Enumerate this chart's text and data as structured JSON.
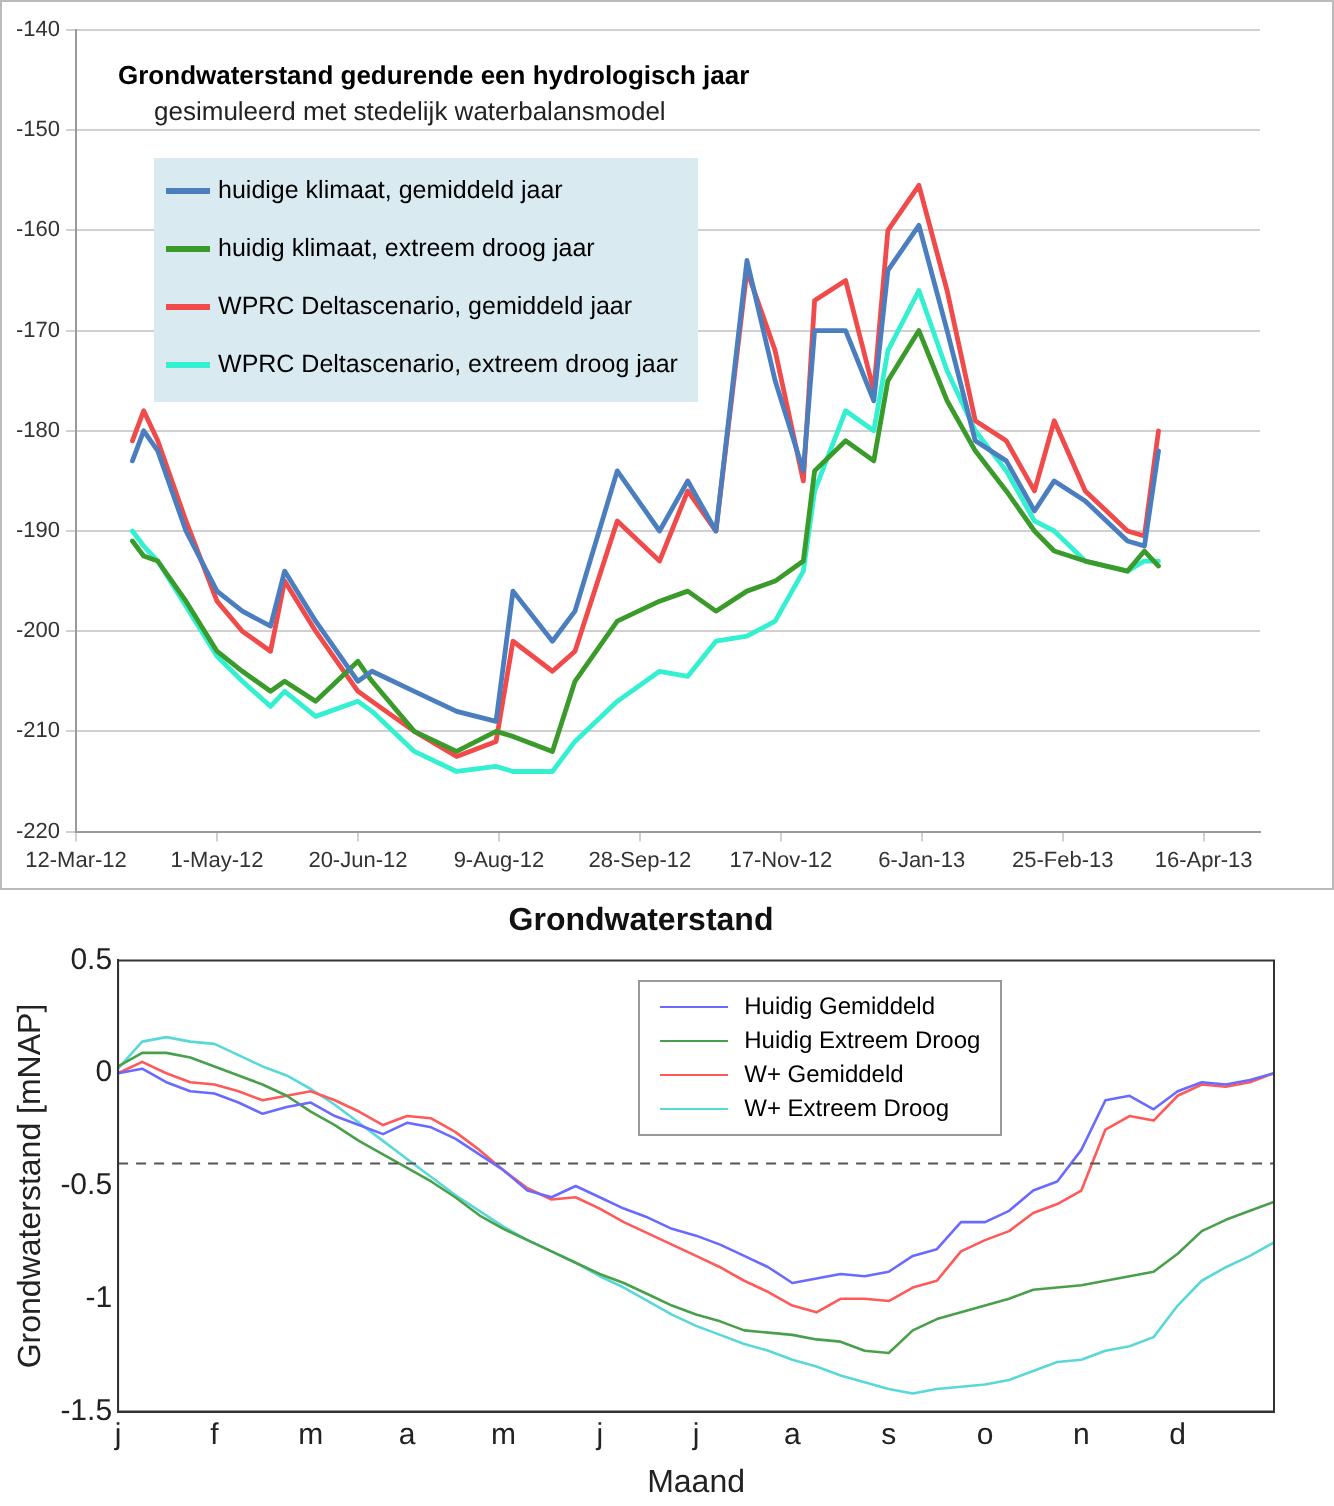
{
  "chart_data": [
    {
      "type": "line",
      "title": "Grondwaterstand gedurende een hydrologisch jaar",
      "subtitle": "gesimuleerd met stedelijk waterbalansmodel",
      "x": [
        "2012-04-01",
        "2012-04-05",
        "2012-04-10",
        "2012-04-20",
        "2012-05-01",
        "2012-05-10",
        "2012-05-20",
        "2012-05-25",
        "2012-06-05",
        "2012-06-20",
        "2012-06-25",
        "2012-07-10",
        "2012-07-25",
        "2012-08-08",
        "2012-08-14",
        "2012-08-28",
        "2012-09-05",
        "2012-09-20",
        "2012-10-05",
        "2012-10-15",
        "2012-10-25",
        "2012-11-05",
        "2012-11-15",
        "2012-11-25",
        "2012-11-29",
        "2012-12-10",
        "2012-12-20",
        "2012-12-25",
        "2013-01-05",
        "2013-01-15",
        "2013-01-25",
        "2013-02-05",
        "2013-02-15",
        "2013-02-22",
        "2013-03-05",
        "2013-03-20",
        "2013-03-26",
        "2013-03-31"
      ],
      "series": [
        {
          "name": "huidige klimaat, gemiddeld jaar",
          "color": "#4a7ebf",
          "values": [
            -183,
            -180,
            -182,
            -190,
            -196,
            -198,
            -199.5,
            -194,
            -199,
            -205,
            -204,
            -206,
            -208,
            -209,
            -196,
            -201,
            -198,
            -184,
            -190,
            -185,
            -190,
            -163,
            -175,
            -184,
            -170,
            -170,
            -177,
            -164,
            -159.5,
            -170,
            -181,
            -183,
            -188,
            -185,
            -187,
            -191,
            -191.5,
            -182
          ]
        },
        {
          "name": "huidig klimaat, extreem droog jaar",
          "color": "#3a9a2a",
          "values": [
            -191,
            -192.5,
            -193,
            -197,
            -202,
            -204,
            -206,
            -205,
            -207,
            -203,
            -205,
            -210,
            -212,
            -210,
            -210.5,
            -212,
            -205,
            -199,
            -197,
            -196,
            -198,
            -196,
            -195,
            -193,
            -184,
            -181,
            -183,
            -175,
            -170,
            -177,
            -182,
            -186,
            -190,
            -192,
            -193,
            -194,
            -192,
            -193.5
          ]
        },
        {
          "name": "WPRC Deltascenario, gemiddeld jaar",
          "color": "#f04a4a",
          "values": [
            -181,
            -178,
            -181,
            -189,
            -197,
            -200,
            -202,
            -195,
            -200,
            -206,
            -207,
            -210,
            -212.5,
            -211,
            -201,
            -204,
            -202,
            -189,
            -193,
            -186,
            -190,
            -164,
            -172,
            -185,
            -167,
            -165,
            -176,
            -160,
            -155.5,
            -166,
            -179,
            -181,
            -186,
            -179,
            -186,
            -190,
            -190.5,
            -180
          ]
        },
        {
          "name": "WPRC Deltascenario, extreem droog jaar",
          "color": "#33f0d0",
          "values": [
            -190,
            -191.5,
            -193,
            -197.5,
            -202.5,
            -205,
            -207.5,
            -206,
            -208.5,
            -207,
            -208,
            -212,
            -214,
            -213.5,
            -214,
            -214,
            -211,
            -207,
            -204,
            -204.5,
            -201,
            -200.5,
            -199,
            -194,
            -186,
            -178,
            -180,
            -172,
            -166,
            -174,
            -180,
            -184,
            -189,
            -190,
            -193,
            -194,
            -193,
            -193
          ]
        }
      ],
      "xlim": [
        "2012-03-12",
        "2013-05-06"
      ],
      "xticks": [
        {
          "value": "2012-03-12",
          "label": "12-Mar-12"
        },
        {
          "value": "2012-05-01",
          "label": "1-May-12"
        },
        {
          "value": "2012-06-20",
          "label": "20-Jun-12"
        },
        {
          "value": "2012-08-09",
          "label": "9-Aug-12"
        },
        {
          "value": "2012-09-28",
          "label": "28-Sep-12"
        },
        {
          "value": "2012-11-17",
          "label": "17-Nov-12"
        },
        {
          "value": "2013-01-06",
          "label": "6-Jan-13"
        },
        {
          "value": "2013-02-25",
          "label": "25-Feb-13"
        },
        {
          "value": "2013-04-16",
          "label": "16-Apr-13"
        }
      ],
      "ylim": [
        -220,
        -140
      ],
      "yticks": [
        -220,
        -210,
        -200,
        -190,
        -180,
        -170,
        -160,
        -150,
        -140
      ],
      "grid": "y",
      "legend": "top left",
      "marker": "none",
      "line_style": "solid"
    },
    {
      "type": "line",
      "title": "Grondwaterstand",
      "xlabel": "Maand",
      "ylabel": "Grondwaterstand [mNAP]",
      "categories": [
        "j",
        null,
        null,
        null,
        "f",
        null,
        null,
        null,
        "m",
        null,
        null,
        null,
        "a",
        null,
        null,
        null,
        "m",
        null,
        null,
        null,
        "j",
        null,
        null,
        null,
        "j",
        null,
        null,
        null,
        "a",
        null,
        null,
        null,
        "s",
        null,
        null,
        null,
        "o",
        null,
        null,
        null,
        "n",
        null,
        null,
        null,
        "d",
        null,
        null,
        null,
        null
      ],
      "series": [
        {
          "name": "Huidig Gemiddeld",
          "color": "#6a6aff",
          "values": [
            0,
            0.02,
            -0.04,
            -0.08,
            -0.09,
            -0.13,
            -0.18,
            -0.15,
            -0.13,
            -0.19,
            -0.23,
            -0.27,
            -0.22,
            -0.24,
            -0.29,
            -0.36,
            -0.43,
            -0.52,
            -0.55,
            -0.5,
            -0.55,
            -0.6,
            -0.64,
            -0.69,
            -0.72,
            -0.76,
            -0.81,
            -0.86,
            -0.93,
            -0.91,
            -0.89,
            -0.9,
            -0.88,
            -0.81,
            -0.78,
            -0.66,
            -0.66,
            -0.61,
            -0.52,
            -0.48,
            -0.34,
            -0.12,
            -0.1,
            -0.16,
            -0.08,
            -0.04,
            -0.05,
            -0.03,
            0
          ]
        },
        {
          "name": "Huidig Extreem Droog",
          "color": "#4aa04a",
          "values": [
            0.03,
            0.09,
            0.09,
            0.07,
            0.03,
            -0.01,
            -0.05,
            -0.1,
            -0.17,
            -0.23,
            -0.3,
            -0.36,
            -0.42,
            -0.48,
            -0.55,
            -0.63,
            -0.69,
            -0.74,
            -0.79,
            -0.84,
            -0.89,
            -0.93,
            -0.98,
            -1.03,
            -1.07,
            -1.1,
            -1.14,
            -1.15,
            -1.16,
            -1.18,
            -1.19,
            -1.23,
            -1.24,
            -1.14,
            -1.09,
            -1.06,
            -1.03,
            -1,
            -0.96,
            -0.95,
            -0.94,
            -0.92,
            -0.9,
            -0.88,
            -0.8,
            -0.7,
            -0.65,
            -0.61,
            -0.57
          ]
        },
        {
          "name": "W+ Gemiddeld",
          "color": "#ff5a5a",
          "values": [
            0,
            0.05,
            0,
            -0.04,
            -0.05,
            -0.08,
            -0.12,
            -0.1,
            -0.08,
            -0.12,
            -0.17,
            -0.23,
            -0.19,
            -0.2,
            -0.26,
            -0.34,
            -0.43,
            -0.51,
            -0.56,
            -0.55,
            -0.6,
            -0.66,
            -0.71,
            -0.76,
            -0.81,
            -0.86,
            -0.92,
            -0.97,
            -1.03,
            -1.06,
            -1,
            -1,
            -1.01,
            -0.95,
            -0.92,
            -0.79,
            -0.74,
            -0.7,
            -0.62,
            -0.58,
            -0.52,
            -0.25,
            -0.19,
            -0.21,
            -0.1,
            -0.05,
            -0.06,
            -0.04,
            0
          ]
        },
        {
          "name": "W+ Extreem Droog",
          "color": "#5ad8d8",
          "values": [
            0.02,
            0.14,
            0.16,
            0.14,
            0.13,
            0.08,
            0.03,
            -0.01,
            -0.07,
            -0.14,
            -0.22,
            -0.3,
            -0.38,
            -0.46,
            -0.54,
            -0.61,
            -0.68,
            -0.74,
            -0.79,
            -0.84,
            -0.9,
            -0.95,
            -1.01,
            -1.07,
            -1.12,
            -1.16,
            -1.2,
            -1.23,
            -1.27,
            -1.3,
            -1.34,
            -1.37,
            -1.4,
            -1.42,
            -1.4,
            -1.39,
            -1.38,
            -1.36,
            -1.32,
            -1.28,
            -1.27,
            -1.23,
            -1.21,
            -1.17,
            -1.03,
            -0.92,
            -0.86,
            -0.81,
            -0.75
          ]
        }
      ],
      "ylim": [
        -1.5,
        0.5
      ],
      "yticks": [
        -1.5,
        -1,
        -0.5,
        0,
        0.5
      ],
      "ref_lines": [
        {
          "axis": "y",
          "value": -0.4,
          "color": "#555555",
          "line_style": "dashed"
        }
      ],
      "grid": false,
      "legend": "top right",
      "marker": "none",
      "line_style": "solid"
    }
  ]
}
